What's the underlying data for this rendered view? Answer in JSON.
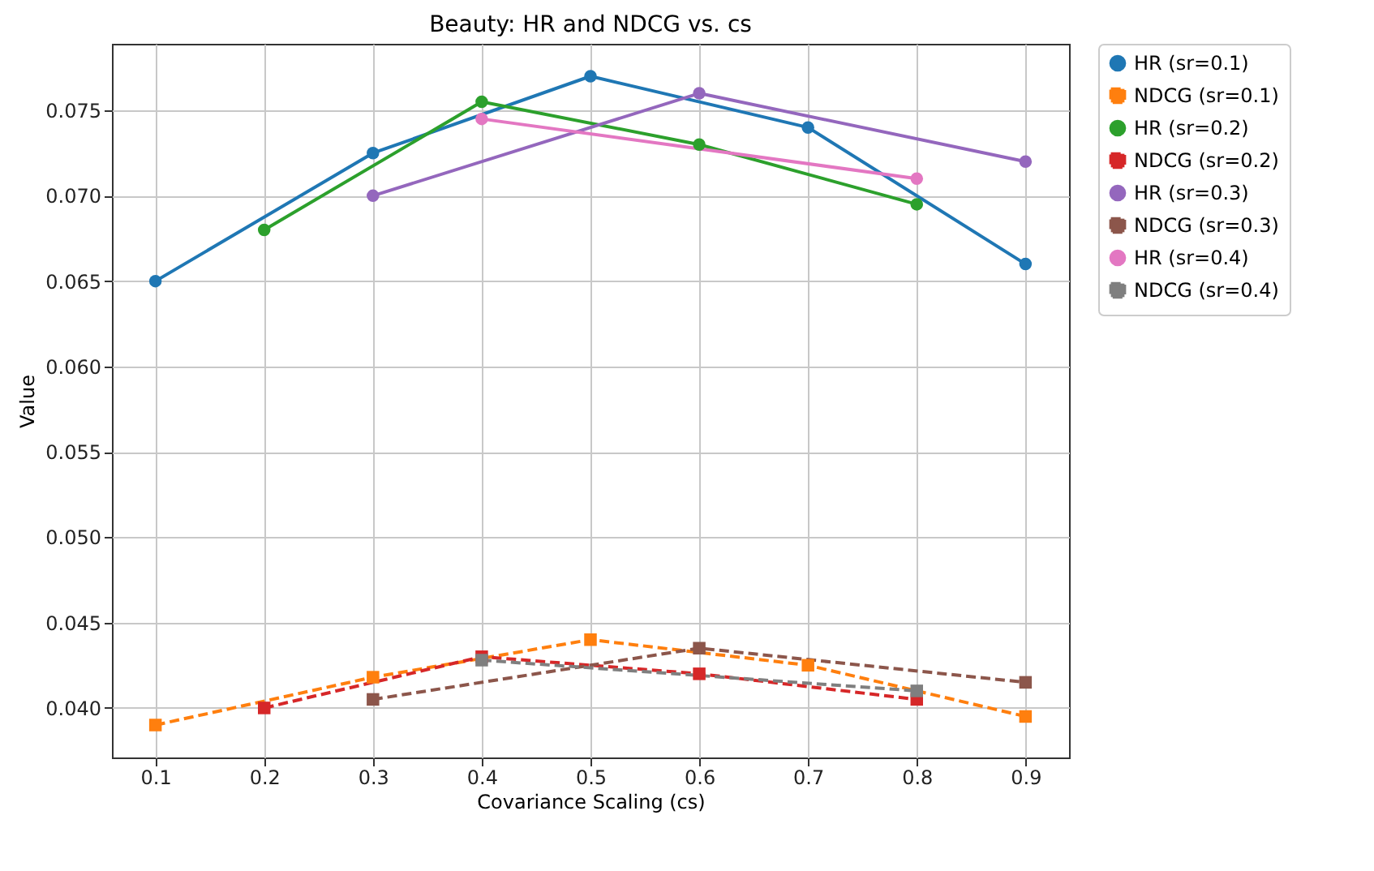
{
  "chart_data": {
    "type": "line",
    "title": "Beauty: HR and NDCG vs. cs",
    "xlabel": "Covariance Scaling (cs)",
    "ylabel": "Value",
    "xlim": [
      0.06,
      0.94
    ],
    "xticks": [
      {
        "value": 0.1,
        "label": "0.1"
      },
      {
        "value": 0.2,
        "label": "0.2"
      },
      {
        "value": 0.3,
        "label": "0.3"
      },
      {
        "value": 0.4,
        "label": "0.4"
      },
      {
        "value": 0.5,
        "label": "0.5"
      },
      {
        "value": 0.6,
        "label": "0.6"
      },
      {
        "value": 0.7,
        "label": "0.7"
      },
      {
        "value": 0.8,
        "label": "0.8"
      },
      {
        "value": 0.9,
        "label": "0.9"
      }
    ],
    "ylim": [
      0.0371,
      0.0789
    ],
    "yticks": [
      {
        "value": 0.04,
        "label": "0.040"
      },
      {
        "value": 0.045,
        "label": "0.045"
      },
      {
        "value": 0.05,
        "label": "0.050"
      },
      {
        "value": 0.055,
        "label": "0.055"
      },
      {
        "value": 0.06,
        "label": "0.060"
      },
      {
        "value": 0.065,
        "label": "0.065"
      },
      {
        "value": 0.07,
        "label": "0.070"
      },
      {
        "value": 0.075,
        "label": "0.075"
      }
    ],
    "grid": true,
    "legend": "right",
    "series": [
      {
        "name": "HR (sr=0.1)",
        "color": "#1f77b4",
        "marker": "circle",
        "line_style": "solid",
        "x": [
          0.1,
          0.3,
          0.5,
          0.7,
          0.9
        ],
        "values": [
          0.065,
          0.0725,
          0.077,
          0.074,
          0.066
        ]
      },
      {
        "name": "NDCG (sr=0.1)",
        "color": "#ff7f0e",
        "marker": "square",
        "line_style": "dashed",
        "x": [
          0.1,
          0.3,
          0.5,
          0.7,
          0.9
        ],
        "values": [
          0.039,
          0.0418,
          0.044,
          0.0425,
          0.0395
        ]
      },
      {
        "name": "HR (sr=0.2)",
        "color": "#2ca02c",
        "marker": "circle",
        "line_style": "solid",
        "x": [
          0.2,
          0.4,
          0.6,
          0.8
        ],
        "values": [
          0.068,
          0.0755,
          0.073,
          0.0695
        ]
      },
      {
        "name": "NDCG (sr=0.2)",
        "color": "#d62728",
        "marker": "square",
        "line_style": "dashed",
        "x": [
          0.2,
          0.4,
          0.6,
          0.8
        ],
        "values": [
          0.04,
          0.043,
          0.042,
          0.0405
        ]
      },
      {
        "name": "HR (sr=0.3)",
        "color": "#9467bd",
        "marker": "circle",
        "line_style": "solid",
        "x": [
          0.3,
          0.6,
          0.9
        ],
        "values": [
          0.07,
          0.076,
          0.072
        ]
      },
      {
        "name": "NDCG (sr=0.3)",
        "color": "#8c564b",
        "marker": "square",
        "line_style": "dashed",
        "x": [
          0.3,
          0.6,
          0.9
        ],
        "values": [
          0.0405,
          0.0435,
          0.0415
        ]
      },
      {
        "name": "HR (sr=0.4)",
        "color": "#e377c2",
        "marker": "circle",
        "line_style": "solid",
        "x": [
          0.4,
          0.8
        ],
        "values": [
          0.0745,
          0.071
        ]
      },
      {
        "name": "NDCG (sr=0.4)",
        "color": "#7f7f7f",
        "marker": "square",
        "line_style": "dashed",
        "x": [
          0.4,
          0.8
        ],
        "values": [
          0.0428,
          0.041
        ]
      }
    ]
  }
}
